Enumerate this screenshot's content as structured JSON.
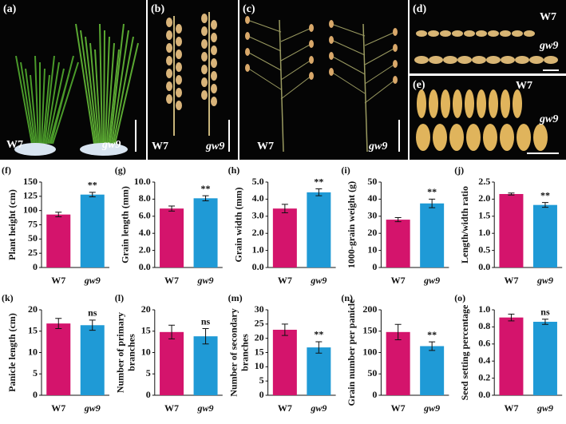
{
  "photos": [
    {
      "label": "(a)",
      "texts": [
        "W7",
        "gw9"
      ]
    },
    {
      "label": "(b)",
      "texts": [
        "W7",
        "gw9"
      ]
    },
    {
      "label": "(c)",
      "texts": [
        "W7",
        "gw9"
      ]
    },
    {
      "label": "(d)",
      "texts": [
        "W7",
        "gw9"
      ]
    },
    {
      "label": "(e)",
      "texts": [
        "W7",
        "gw9"
      ]
    }
  ],
  "chart_data": [
    {
      "type": "bar",
      "panel": "(f)",
      "ylabel": "Plant height (cm)",
      "categories": [
        "W7",
        "gw9"
      ],
      "colors": [
        "#d4146c",
        "#1f9ad6"
      ],
      "values": [
        93,
        128
      ],
      "errors": [
        4,
        4
      ],
      "significance": "**",
      "ylim": [
        0,
        150
      ],
      "yticks": [
        0,
        25,
        50,
        75,
        100,
        125,
        150
      ]
    },
    {
      "type": "bar",
      "panel": "(g)",
      "ylabel": "Grain length (mm)",
      "categories": [
        "W7",
        "gw9"
      ],
      "colors": [
        "#d4146c",
        "#1f9ad6"
      ],
      "values": [
        6.9,
        8.1
      ],
      "errors": [
        0.3,
        0.3
      ],
      "significance": "**",
      "ylim": [
        0,
        10
      ],
      "yticks": [
        {
          "value": 0,
          "label": "0.0"
        },
        {
          "value": 2,
          "label": "2.0"
        },
        {
          "value": 4,
          "label": "4.0"
        },
        {
          "value": 6,
          "label": "6.0"
        },
        {
          "value": 8,
          "label": "8.0"
        },
        {
          "value": 10,
          "label": "10.0"
        }
      ]
    },
    {
      "type": "bar",
      "panel": "(h)",
      "ylabel": "Grain width (mm)",
      "categories": [
        "W7",
        "gw9"
      ],
      "colors": [
        "#d4146c",
        "#1f9ad6"
      ],
      "values": [
        3.45,
        4.4
      ],
      "errors": [
        0.25,
        0.2
      ],
      "significance": "**",
      "ylim": [
        0,
        5
      ],
      "yticks": [
        {
          "value": 0,
          "label": "0.0"
        },
        {
          "value": 1,
          "label": "1.0"
        },
        {
          "value": 2,
          "label": "2.0"
        },
        {
          "value": 3,
          "label": "3.0"
        },
        {
          "value": 4,
          "label": "4.0"
        },
        {
          "value": 5,
          "label": "5.0"
        }
      ]
    },
    {
      "type": "bar",
      "panel": "(i)",
      "ylabel": "1000-grain weight (g)",
      "categories": [
        "W7",
        "gw9"
      ],
      "colors": [
        "#d4146c",
        "#1f9ad6"
      ],
      "values": [
        28,
        37.5
      ],
      "errors": [
        1.2,
        2.5
      ],
      "significance": "**",
      "ylim": [
        0,
        50
      ],
      "yticks": [
        0,
        10,
        20,
        30,
        40,
        50
      ]
    },
    {
      "type": "bar",
      "panel": "(j)",
      "ylabel": "Length/width ratio",
      "categories": [
        "W7",
        "gw9"
      ],
      "colors": [
        "#d4146c",
        "#1f9ad6"
      ],
      "values": [
        2.15,
        1.83
      ],
      "errors": [
        0.03,
        0.07
      ],
      "significance": "**",
      "ylim": [
        0,
        2.5
      ],
      "yticks": [
        {
          "value": 0,
          "label": "0.0"
        },
        0.5,
        {
          "value": 1,
          "label": "1.0"
        },
        1.5,
        {
          "value": 2,
          "label": "2.0"
        },
        2.5
      ]
    },
    {
      "type": "bar",
      "panel": "(k)",
      "ylabel": "Panicle length (cm)",
      "categories": [
        "W7",
        "gw9"
      ],
      "colors": [
        "#d4146c",
        "#1f9ad6"
      ],
      "values": [
        16.8,
        16.4
      ],
      "errors": [
        1.2,
        1.2
      ],
      "significance": "ns",
      "ylim": [
        0,
        20
      ],
      "yticks": [
        0,
        5,
        10,
        15,
        20
      ]
    },
    {
      "type": "bar",
      "panel": "(l)",
      "ylabel": [
        "Number of primary",
        "branches"
      ],
      "categories": [
        "W7",
        "gw9"
      ],
      "colors": [
        "#d4146c",
        "#1f9ad6"
      ],
      "values": [
        14.8,
        13.8
      ],
      "errors": [
        1.6,
        1.8
      ],
      "significance": "ns",
      "ylim": [
        0,
        20
      ],
      "yticks": [
        0,
        5,
        10,
        15,
        20
      ]
    },
    {
      "type": "bar",
      "panel": "(m)",
      "ylabel": [
        "Number of secondary",
        "branches"
      ],
      "categories": [
        "W7",
        "gw9"
      ],
      "colors": [
        "#d4146c",
        "#1f9ad6"
      ],
      "values": [
        23,
        16.8
      ],
      "errors": [
        2,
        2
      ],
      "significance": "**",
      "ylim": [
        0,
        30
      ],
      "yticks": [
        0,
        5,
        10,
        15,
        20,
        25,
        30
      ]
    },
    {
      "type": "bar",
      "panel": "(n)",
      "ylabel": "Grain number per panicle",
      "categories": [
        "W7",
        "gw9"
      ],
      "colors": [
        "#d4146c",
        "#1f9ad6"
      ],
      "values": [
        148,
        115
      ],
      "errors": [
        18,
        10
      ],
      "significance": "**",
      "ylim": [
        0,
        200
      ],
      "yticks": [
        0,
        50,
        100,
        150,
        200
      ]
    },
    {
      "type": "bar",
      "panel": "(o)",
      "ylabel": "Seed setting percentage",
      "categories": [
        "W7",
        "gw9"
      ],
      "colors": [
        "#d4146c",
        "#1f9ad6"
      ],
      "values": [
        0.91,
        0.86
      ],
      "errors": [
        0.04,
        0.03
      ],
      "significance": "ns",
      "ylim": [
        0,
        1
      ],
      "yticks": [
        {
          "value": 0,
          "label": "0.0"
        },
        0.2,
        0.4,
        0.6,
        0.8,
        {
          "value": 1,
          "label": "1.0"
        }
      ]
    }
  ]
}
